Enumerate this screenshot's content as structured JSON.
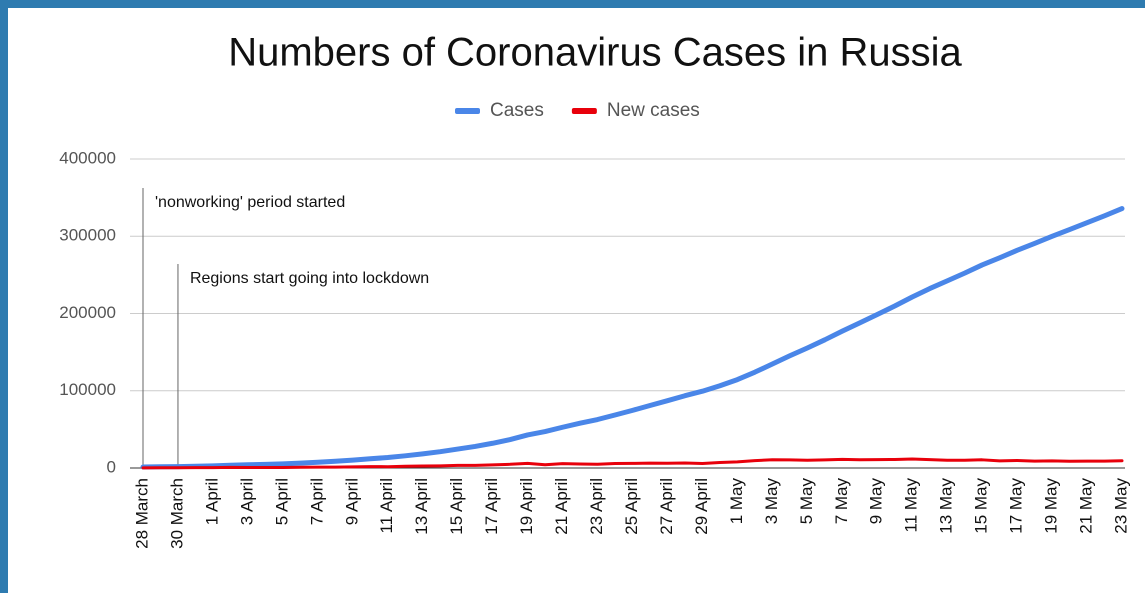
{
  "chart_data": {
    "type": "line",
    "title": "Numbers of Coronavirus Cases in Russia",
    "categories": [
      "28 March",
      null,
      "30 March",
      null,
      "1 April",
      null,
      "3 April",
      null,
      "5 April",
      null,
      "7 April",
      null,
      "9 April",
      null,
      "11 April",
      null,
      "13 April",
      null,
      "15 April",
      null,
      "17 April",
      null,
      "19 April",
      null,
      "21 April",
      null,
      "23 April",
      null,
      "25 April",
      null,
      "27 April",
      null,
      "29 April",
      null,
      "1 May",
      null,
      "3 May",
      null,
      "5 May",
      null,
      "7 May",
      null,
      "9 May",
      null,
      "11 May",
      null,
      "13 May",
      null,
      "15 May",
      null,
      "17 May",
      null,
      "19 May",
      null,
      "21 May",
      null,
      "23 May"
    ],
    "series": [
      {
        "name": "Cases",
        "color": "#4a86e8",
        "values": [
          1264,
          1534,
          1836,
          2337,
          2777,
          3548,
          4149,
          4731,
          5389,
          6343,
          7497,
          8672,
          10131,
          11917,
          13584,
          15770,
          18328,
          21102,
          24490,
          27938,
          32008,
          36793,
          42853,
          47121,
          52763,
          57999,
          62773,
          68622,
          74588,
          80949,
          87147,
          93558,
          99399,
          106498,
          114431,
          124054,
          134686,
          145268,
          155370,
          165929,
          177160,
          187859,
          198676,
          209688,
          221344,
          232243,
          242271,
          252245,
          262843,
          272043,
          281752,
          290678,
          299941,
          308705,
          317554,
          326448,
          335882
        ]
      },
      {
        "name": "New cases",
        "color": "#e8000b",
        "values": [
          228,
          270,
          302,
          501,
          440,
          771,
          601,
          582,
          658,
          954,
          1154,
          1175,
          1459,
          1786,
          1667,
          2186,
          2558,
          2774,
          3388,
          3448,
          4070,
          4785,
          6060,
          4268,
          5642,
          5236,
          4774,
          5849,
          5966,
          6361,
          6198,
          6411,
          5841,
          7099,
          7933,
          9623,
          10633,
          10581,
          10102,
          10559,
          11231,
          10699,
          10817,
          11012,
          11656,
          10899,
          10028,
          9974,
          10598,
          9200,
          9709,
          8926,
          9263,
          8764,
          8849,
          8894,
          9434
        ]
      }
    ],
    "ylim": [
      0,
      400000
    ],
    "yticks": [
      0,
      100000,
      200000,
      300000,
      400000
    ],
    "grid": true,
    "legend": "top",
    "annotations": [
      {
        "text": "'nonworking' period started",
        "x": "28 March"
      },
      {
        "text": "Regions start going into lockdown",
        "x": "30 March"
      }
    ]
  }
}
